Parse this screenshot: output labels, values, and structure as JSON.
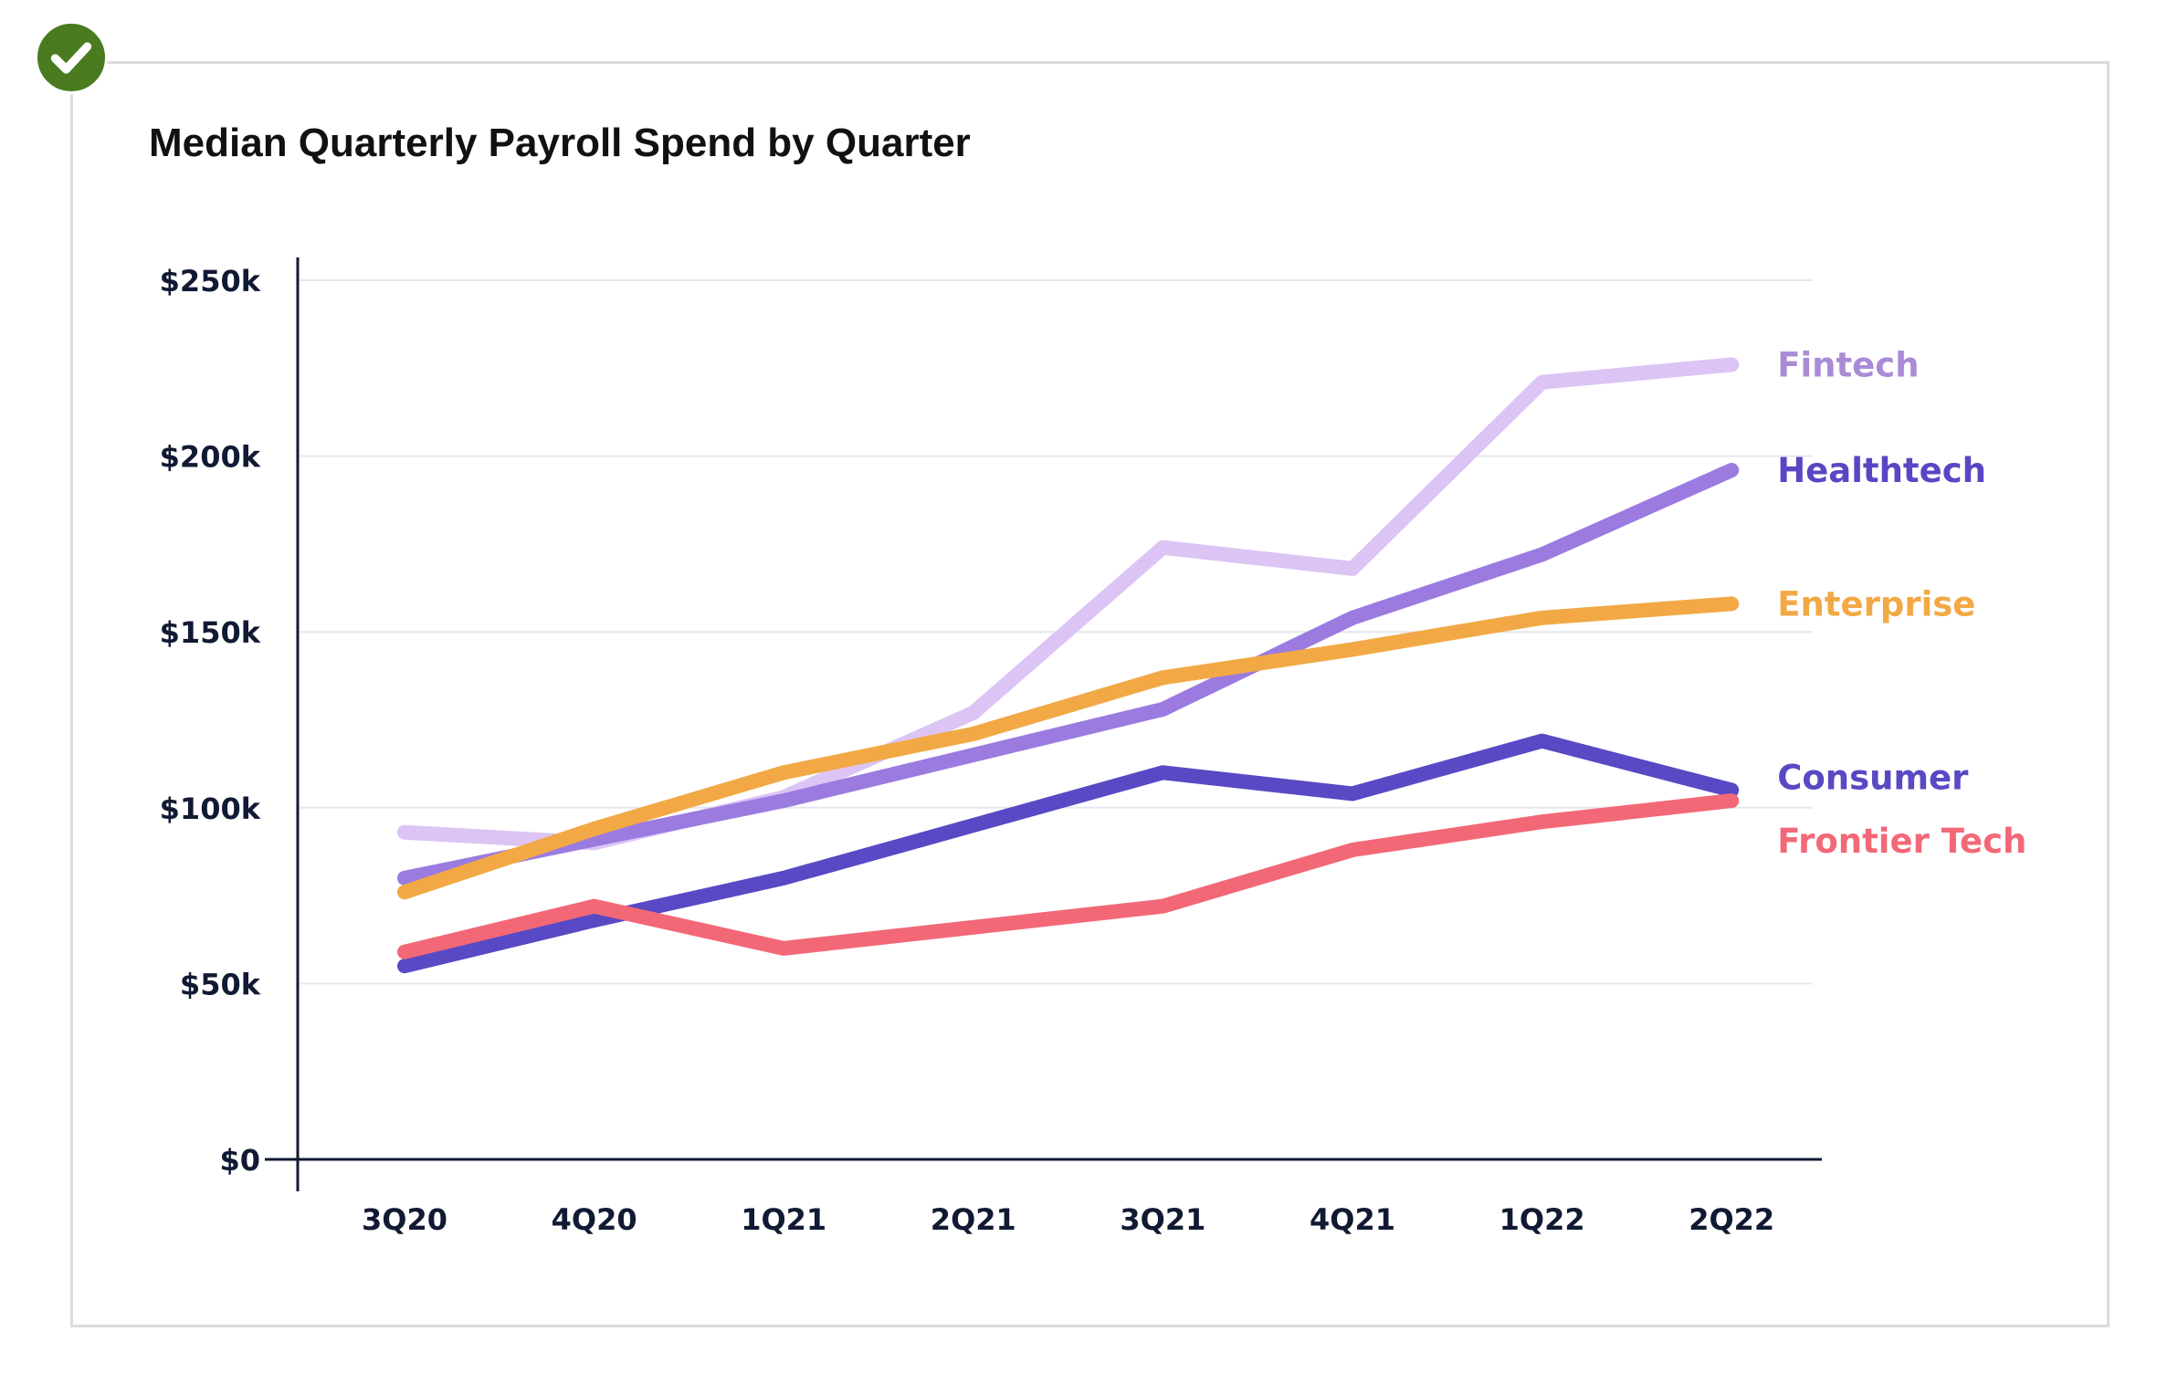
{
  "badge": {
    "icon": "checkmark-icon",
    "color": "#4a7c1f"
  },
  "chart_data": {
    "type": "line",
    "title": "Median Quarterly Payroll Spend by Quarter",
    "xlabel": "",
    "ylabel": "",
    "categories": [
      "3Q20",
      "4Q20",
      "1Q21",
      "2Q21",
      "3Q21",
      "4Q21",
      "1Q22",
      "2Q22"
    ],
    "ylim": [
      0,
      250000
    ],
    "yticks": [
      {
        "value": 0,
        "label": "$0"
      },
      {
        "value": 50000,
        "label": "$50k"
      },
      {
        "value": 100000,
        "label": "$100k"
      },
      {
        "value": 150000,
        "label": "$150k"
      },
      {
        "value": 200000,
        "label": "$200k"
      },
      {
        "value": 250000,
        "label": "$250k"
      }
    ],
    "grid": true,
    "legend": "direct labels at right end of lines",
    "series": [
      {
        "name": "Fintech",
        "color": "#dcc4f5",
        "label_color": "#a98bd6",
        "values": [
          93000,
          90000,
          103000,
          127000,
          174000,
          168000,
          221000,
          226000
        ]
      },
      {
        "name": "Healthtech",
        "color": "#9b7be0",
        "label_color": "#5b45c4",
        "values": [
          80000,
          91000,
          102000,
          115000,
          128000,
          154000,
          172000,
          196000
        ]
      },
      {
        "name": "Enterprise",
        "color": "#f2a945",
        "label_color": "#f2a945",
        "values": [
          76000,
          94000,
          110000,
          121000,
          137000,
          145000,
          154000,
          158000
        ]
      },
      {
        "name": "Consumer",
        "color": "#5849c4",
        "label_color": "#5849c4",
        "values": [
          55000,
          68000,
          80000,
          95000,
          110000,
          104000,
          119000,
          105000
        ]
      },
      {
        "name": "Frontier Tech",
        "color": "#f26877",
        "label_color": "#f26877",
        "values": [
          59000,
          72000,
          60000,
          66000,
          72000,
          88000,
          96000,
          102000
        ]
      }
    ]
  }
}
